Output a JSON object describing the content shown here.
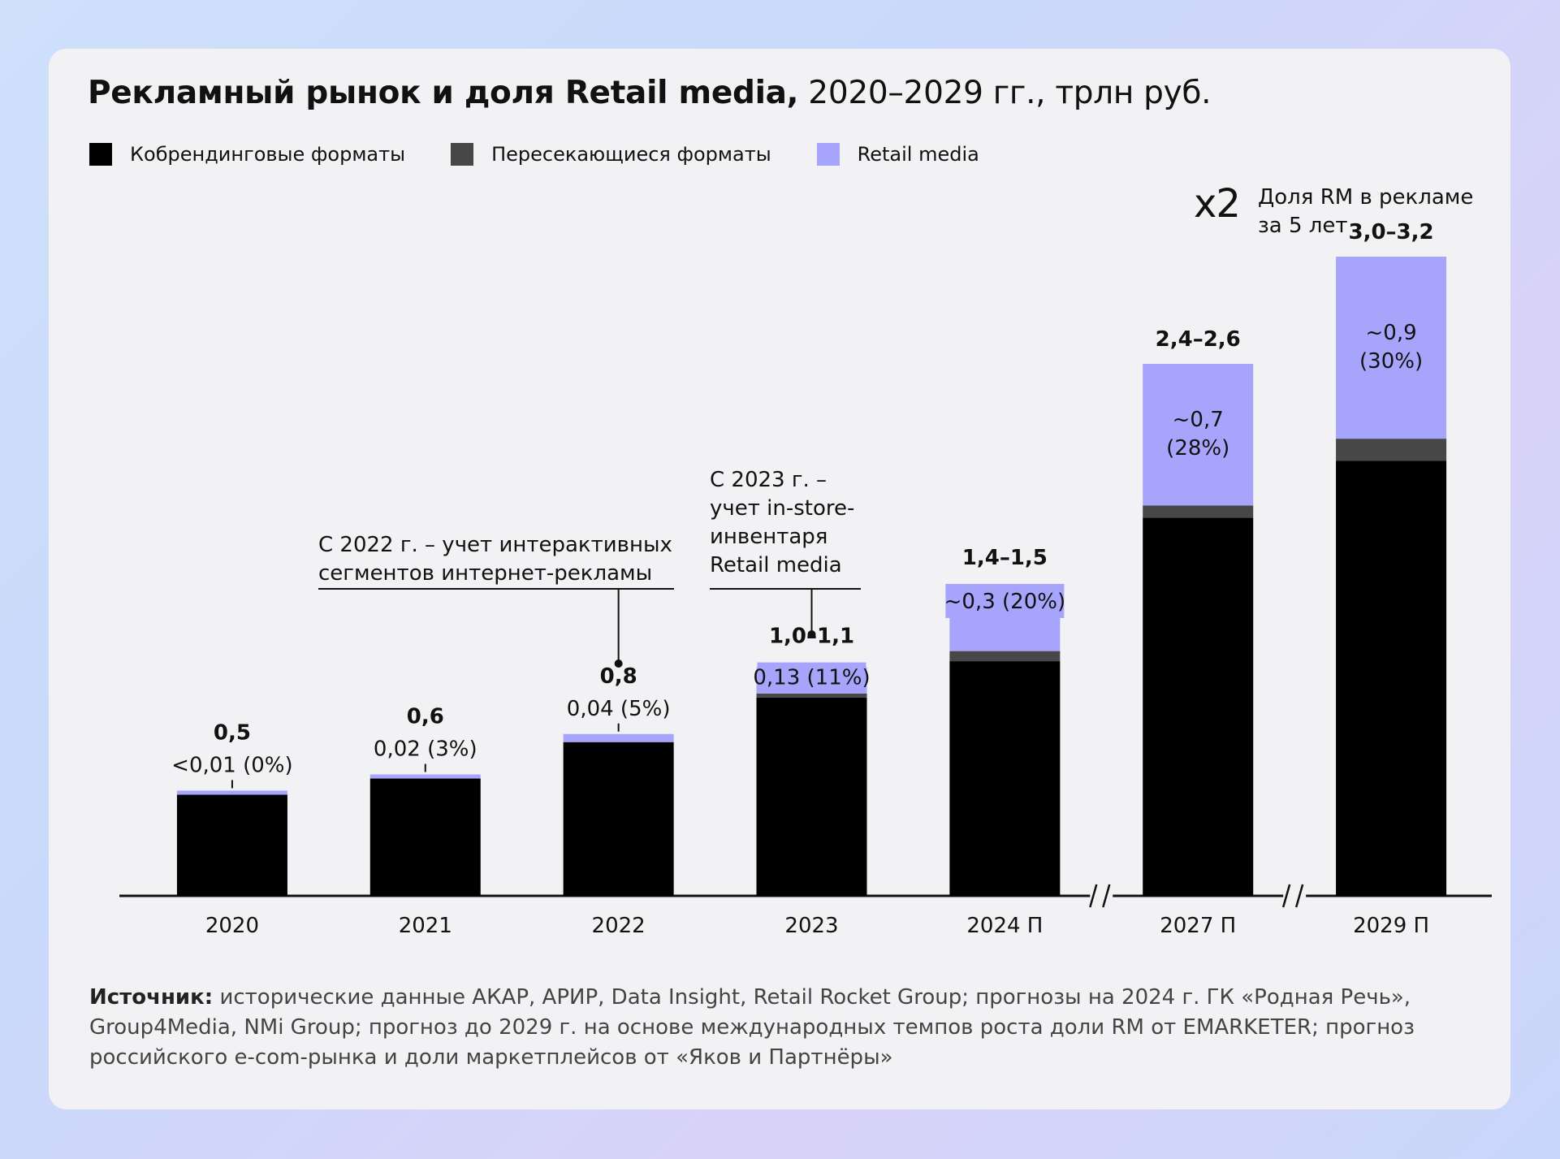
{
  "title": {
    "bold": "Рекламный рынок и доля Retail media,",
    "rest": " 2020–2029 гг., трлн руб."
  },
  "legend": [
    {
      "label": "Кобрендинговые форматы",
      "color": "#000000"
    },
    {
      "label": "Пересекающиеся форматы",
      "color": "#474747"
    },
    {
      "label": "Retail media",
      "color": "#a7a4fb"
    }
  ],
  "callout": {
    "multiplier": "x2",
    "text": "Доля RM в рекламе за 5 лет"
  },
  "chart_data": {
    "type": "bar",
    "stacked": true,
    "categories": [
      "2020",
      "2021",
      "2022",
      "2023",
      "2024 П",
      "2027 П",
      "2029 П"
    ],
    "series": [
      {
        "name": "Кобрендинговые форматы",
        "color": "#000000",
        "values": [
          0.5,
          0.58,
          0.76,
          0.98,
          1.16,
          1.87,
          2.15
        ]
      },
      {
        "name": "Пересекающиеся форматы",
        "color": "#474747",
        "values": [
          0,
          0,
          0,
          0.02,
          0.05,
          0.06,
          0.11
        ]
      },
      {
        "name": "Retail media",
        "color": "#a7a4fb",
        "values": [
          0.005,
          0.02,
          0.04,
          0.13,
          0.3,
          0.7,
          0.9
        ]
      }
    ],
    "total_labels": [
      "0,5",
      "0,6",
      "0,8",
      "1,0–1,1",
      "1,4–1,5",
      "2,4–2,6",
      "3,0–3,2"
    ],
    "rm_labels": [
      "<0,01 (0%)",
      "0,02 (3%)",
      "0,04 (5%)",
      "0,13 (11%)",
      "~0,3 (20%)",
      "~0,7",
      "~0,9"
    ],
    "rm_pct_labels": [
      "",
      "",
      "",
      "",
      "",
      "(28%)",
      "(30%)"
    ],
    "axis_breaks_after": [
      "2024 П",
      "2027 П"
    ],
    "ylim": [
      0,
      3.2
    ],
    "xlabel": "",
    "ylabel": "",
    "annotations": [
      {
        "category": "2022",
        "lines": [
          "С 2022 г. – учет интерактивных",
          "сегментов интернет-рекламы"
        ]
      },
      {
        "category": "2023",
        "lines": [
          "С 2023 г. –",
          "учет in-store-",
          "инвентаря",
          "Retail media"
        ]
      }
    ]
  },
  "source": {
    "label": "Источник:",
    "text": " исторические данные АКАР, АРИР, Data Insight, Retail Rocket Group; прогнозы на 2024 г. ГК «Родная Речь», Group4Media, NMi Group; прогноз до 2029 г. на основе международных темпов роста доли RM от EMARKETER; прогноз российского e-com-рынка и доли маркетплейсов от «Яков и Партнёры»"
  }
}
